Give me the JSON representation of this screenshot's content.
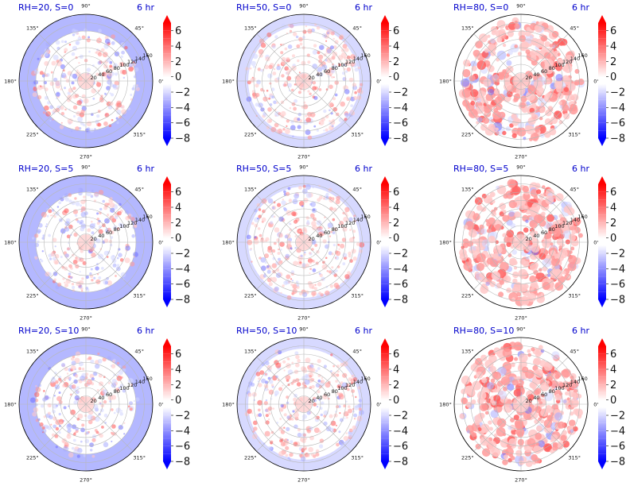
{
  "colors": {
    "title": "#0000cc",
    "positive_max": "#ff0000",
    "negative_max": "#0000ff",
    "grid": "#b8b8b8",
    "zero": "#ffffff"
  },
  "figure": {
    "angle_labels": [
      "0°",
      "45°",
      "90°",
      "135°",
      "180°",
      "225°",
      "270°",
      "315°"
    ],
    "radial_labels": [
      "20",
      "40",
      "60",
      "80",
      "100",
      "120",
      "140",
      "160"
    ],
    "colorbar_ticks": [
      "6",
      "4",
      "2",
      "0",
      "−2",
      "−4",
      "−6",
      "−8"
    ]
  },
  "chart_data": [
    {
      "type": "heatmap",
      "projection": "polar",
      "title": "RH=20, S=0",
      "time_label": "6 hr",
      "rh": 20,
      "s": 0,
      "outer_ring": "blue",
      "r_range": [
        0,
        160
      ],
      "color_range": [
        -8,
        7
      ],
      "grid": true
    },
    {
      "type": "heatmap",
      "projection": "polar",
      "title": "RH=50, S=0",
      "time_label": "6 hr",
      "rh": 50,
      "s": 0,
      "outer_ring": "light-blue",
      "r_range": [
        0,
        160
      ],
      "color_range": [
        -8,
        7
      ],
      "grid": true
    },
    {
      "type": "heatmap",
      "projection": "polar",
      "title": "RH=80, S=0",
      "time_label": "6 hr",
      "rh": 80,
      "s": 0,
      "outer_ring": "none",
      "r_range": [
        0,
        160
      ],
      "color_range": [
        -8,
        7
      ],
      "grid": true
    },
    {
      "type": "heatmap",
      "projection": "polar",
      "title": "RH=20, S=5",
      "time_label": "6 hr",
      "rh": 20,
      "s": 5,
      "outer_ring": "blue",
      "r_range": [
        0,
        160
      ],
      "color_range": [
        -8,
        7
      ],
      "grid": true
    },
    {
      "type": "heatmap",
      "projection": "polar",
      "title": "RH=50, S=5",
      "time_label": "6 hr",
      "rh": 50,
      "s": 5,
      "outer_ring": "light-blue",
      "r_range": [
        0,
        160
      ],
      "color_range": [
        -8,
        7
      ],
      "grid": true
    },
    {
      "type": "heatmap",
      "projection": "polar",
      "title": "RH=80, S=5",
      "time_label": "6 hr",
      "rh": 80,
      "s": 5,
      "outer_ring": "none",
      "r_range": [
        0,
        160
      ],
      "color_range": [
        -8,
        7
      ],
      "grid": true
    },
    {
      "type": "heatmap",
      "projection": "polar",
      "title": "RH=20, S=10",
      "time_label": "6 hr",
      "rh": 20,
      "s": 10,
      "outer_ring": "blue",
      "r_range": [
        0,
        160
      ],
      "color_range": [
        -8,
        7
      ],
      "grid": true
    },
    {
      "type": "heatmap",
      "projection": "polar",
      "title": "RH=50, S=10",
      "time_label": "6 hr",
      "rh": 50,
      "s": 10,
      "outer_ring": "light-blue",
      "r_range": [
        0,
        160
      ],
      "color_range": [
        -8,
        7
      ],
      "grid": true
    },
    {
      "type": "heatmap",
      "projection": "polar",
      "title": "RH=80, S=10",
      "time_label": "6 hr",
      "rh": 80,
      "s": 10,
      "outer_ring": "none",
      "r_range": [
        0,
        160
      ],
      "color_range": [
        -8,
        7
      ],
      "grid": true
    }
  ]
}
